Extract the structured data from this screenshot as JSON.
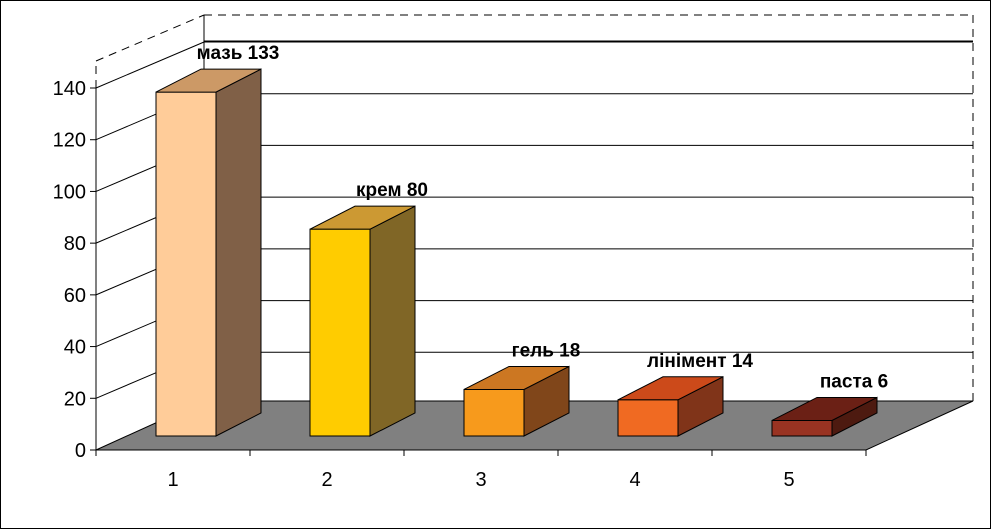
{
  "chart_data": {
    "type": "bar",
    "categories": [
      "1",
      "2",
      "3",
      "4",
      "5"
    ],
    "values": [
      133,
      80,
      18,
      14,
      6
    ],
    "data_labels": [
      "мазь 133",
      "крем 80",
      "гель 18",
      "лінімент 14",
      "паста 6"
    ],
    "y_ticks": [
      "0",
      "20",
      "40",
      "60",
      "80",
      "100",
      "120",
      "140"
    ],
    "ylim": [
      0,
      140
    ],
    "grid": true,
    "legend": "none",
    "three_d": true,
    "colors": {
      "bars": [
        {
          "front": "#FFCC99",
          "top": "#CC9966",
          "side": "#806047"
        },
        {
          "front": "#FFCC00",
          "top": "#CC9933",
          "side": "#806626"
        },
        {
          "front": "#F79A1C",
          "top": "#CC7722",
          "side": "#80461A"
        },
        {
          "front": "#F06A22",
          "top": "#CC4A1A",
          "side": "#803419"
        },
        {
          "front": "#993322",
          "top": "#6B2015",
          "side": "#4D1A10"
        }
      ],
      "floor": "#808080",
      "wall": "#ffffff",
      "grid": "#000000"
    }
  }
}
